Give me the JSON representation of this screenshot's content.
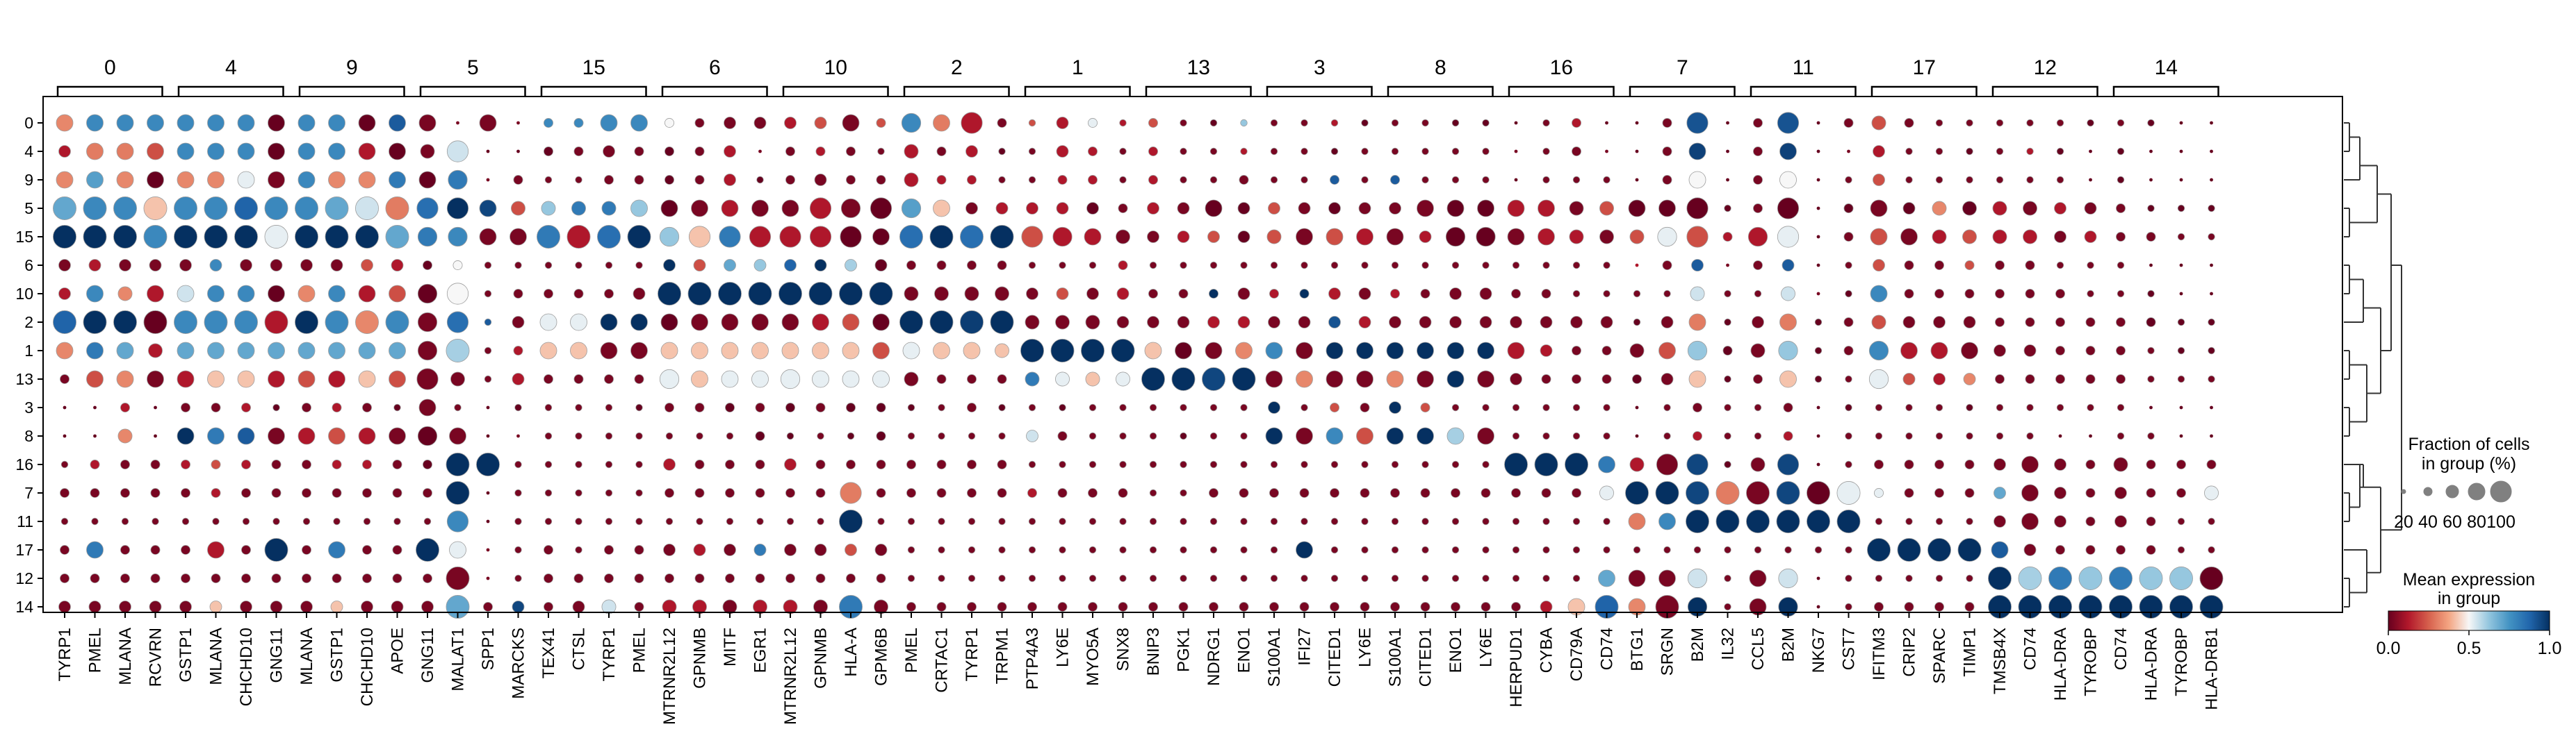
{
  "chart_data": {
    "type": "dotplot",
    "title": "",
    "xlabel": "",
    "ylabel": "",
    "cluster_groups": [
      {
        "label": "0",
        "genes": [
          "TYRP1",
          "PMEL",
          "MLANA",
          "RCVRN"
        ]
      },
      {
        "label": "4",
        "genes": [
          "GSTP1",
          "MLANA",
          "CHCHD10",
          "GNG11"
        ]
      },
      {
        "label": "9",
        "genes": [
          "MLANA",
          "GSTP1",
          "CHCHD10",
          "APOE"
        ]
      },
      {
        "label": "5",
        "genes": [
          "GNG11",
          "MALAT1",
          "SPP1",
          "MARCKS"
        ]
      },
      {
        "label": "15",
        "genes": [
          "TEX41",
          "CTSL",
          "TYRP1",
          "PMEL"
        ]
      },
      {
        "label": "6",
        "genes": [
          "MTRNR2L12",
          "GPNMB",
          "MITF",
          "EGR1"
        ]
      },
      {
        "label": "10",
        "genes": [
          "MTRNR2L12",
          "GPNMB",
          "HLA-A",
          "GPM6B"
        ]
      },
      {
        "label": "2",
        "genes": [
          "PMEL",
          "CRTAC1",
          "TYRP1",
          "TRPM1"
        ]
      },
      {
        "label": "1",
        "genes": [
          "PTP4A3",
          "LY6E",
          "MYO5A",
          "SNX8"
        ]
      },
      {
        "label": "13",
        "genes": [
          "BNIP3",
          "PGK1",
          "NDRG1",
          "ENO1"
        ]
      },
      {
        "label": "3",
        "genes": [
          "S100A1",
          "IFI27",
          "CITED1",
          "LY6E"
        ]
      },
      {
        "label": "8",
        "genes": [
          "S100A1",
          "CITED1",
          "ENO1",
          "LY6E"
        ]
      },
      {
        "label": "16",
        "genes": [
          "HERPUD1",
          "CYBA",
          "CD79A",
          "CD74"
        ]
      },
      {
        "label": "7",
        "genes": [
          "BTG1",
          "SRGN",
          "B2M",
          "IL32"
        ]
      },
      {
        "label": "11",
        "genes": [
          "CCL5",
          "B2M",
          "NKG7",
          "CST7"
        ]
      },
      {
        "label": "17",
        "genes": [
          "IFITM3",
          "CRIP2",
          "SPARC",
          "TIMP1"
        ]
      },
      {
        "label": "12",
        "genes": [
          "TMSB4X",
          "CD74",
          "HLA-DRA",
          "TYROBP"
        ]
      },
      {
        "label": "14",
        "genes": [
          "CD74",
          "HLA-DRA",
          "TYROBP",
          "HLA-DRB1"
        ]
      }
    ],
    "rows": [
      "0",
      "4",
      "9",
      "5",
      "15",
      "6",
      "10",
      "2",
      "1",
      "13",
      "3",
      "8",
      "16",
      "7",
      "11",
      "17",
      "12",
      "14"
    ],
    "expression": [
      "eppp.pppa.ppak.bbbb.pppp.ybbb.cdbd.pqcb.dcgc.dbah.bbca.bbaa.abca.abwa.bwab.dbbb.bbba.baaa",
      "cqqd.pppa.ppca.boaa.abbb.abcb.bcbb.cbca.bccb.cbbc.bbab.bbbb.bbbb.abxa.bxab.cbba.bcaa.aaaa",
      "eiea.eegb.peej.ajbb.bbbb.abca.bbbb.cccb.bccb.cbbb.bbkb.kbbb.abbb.abya.byab.dbbb.bbba.aaaa",
      "nppf.ppsp.pnoq.vtrd.hjjh.abcb.bcba.ifbc.ccab.cbaa.dbab.bbaa.ccbd.aaaa.baaa.baea.cbcb.baaa",
      "tttp.tttg.tttn.jpbb.jcvt.hfjc.ccaa.vtvt.dccb.bcda.dbdc.bcaa.bccb.dgdc.cgab.dbcd.ccbc.bbbb",
      "bcbb.bpbb.bbdc.aybb.bbbb.tdnh.stma.bbbb.bbbc.bbbb.bbbb.bbbb.bbbb.cbkb.bkab.dbbd.bbbb.baaa",
      "cpec.oppa.epcd.aybb.bbbb.tttt.tttt.bbbb.bdbc.bbtb.ctcb.cbbb.bbbb.bbob.boba.pbbb.bbbb.baaa",
      "stta.pppc.tpep.bvkb.ggtt.abbb.bcda.ttut.bbbb.bbcc.bbwc.bbbb.bbbb.abqa.bqab.dbbb.bbbb.baaa",
      "ejnc.nnnn.nnnn.bmbc.ffbb.ffff.fffd.gfff.tttt.fabe.pbtt.tttt.ccbb.bdha.bhab.pccb.bbbb.bbaa",
      "bdeb.cffc.dcfd.bbbc.bbbb.gfgg.gggg.bbbb.jgfg.ttrt.bebb.ebtb.bbbb.abfa.bfab.gdce.bbbb.bbbb",
      "aaca.bbca.bcba.bbaa.bbba.bbab.abaa.abba.babb.bbbb.tbdb.tdbb.bbbb.abbb.bbaa.bbba.bbbb.baaa",
      "aaea.tjkb.cdcb.abab.bbbb.bbba.abaa.bbbb.obbb.babb.tbpd.ttmb.bbbb.abcb.bcab.bbbb.bbaa.bbaa",
      "bcbb.cdcb.bccb.attb.bbbb.cbbb.cbbb.bbbb.bbbb.bbbb.bbbb.bbbb.tttj.cbra.brab.bbbb.bbbb.bbbb",
      "bbbb.bcbb.bbbb.btab.bbbb.bbbb.bbqb.bbbb.cbbb.bbbb.bbbb.bbbb.bbbg.ttrq.brag.gbbb.nbbb.bbbg",
      "bbbb.bbbb.bbbb.bpab.bbbb.bbbb.bbtb.bbbb.bbbb.bbbb.bbbb.bbbb.bbbb.qptt.tttt.bbbb.bbbb.bbbb",
      "bjbb.bcbt.bjbb.tgbb.bbbb.bcbj.bbdb.bbbb.bbbb.bbbb.btbb.bbbb.bbbb.bbbb.bbbb.tttt.kbbb.bbbb",
      "bbbb.bbbb.bbbb.bbbb.bbbb.bbbb.bbbb.bbbb.bbbb.bbbb.bbbb.bbbb.bbbn.bbob.boab.bbbb.tmjh.jhha",
      "bbbb.bfbb.bfbb.bnbr.bbob.ccbc.cbjb.bbbb.bbbb.bbbb.bbbb.bbbb.bcfs.ebtb.btab.bbbb.tttt.tttt"
    ],
    "fraction": [
      "ffff.ffff.ffff.fkfa.ccff.ccdd.ddfc.gfhc.bdcb.cbbb.bbbb.bbbb.abca.acha.chac.ecbb.bbbb.bbaa",
      "dfff.ffff.ffff.ehaa.ccdc.ccda.cccb.ecdb.bdcb.cbbb.bbbb.bbbb.abca.acfa.cfaa.dbbb.bbba.baaa",
      "ffff.ffff.ffff.fgac.bbcc.ccdb.cdcc.eccb.bccb.cbbc.bbcb.cbbb.abbb.acfa.cfab.dbbb.bbba.baaa",
      "iiii.iiii.iiii.hhfe.eeef.ffff.fhgh.gfdd.dddc.ddfd.dddd.dfff.ffee.ffhb.chac.fdee.eedd.cbbb",
      "iiii.iiii.iiii.ggff.iiii.ghhh.hhhf.iiii.hgfe.dddd.efff.fdgg.ffee.eghc.ghac.ffee.eedd.ccbb",
      "dddd.dddd.dddd.ccbb.bbbb.dddd.dddd.cccc.bbbc.bbbb.bbbb.bbbb.bbbb.acda.cdab.dccc.ccbb.baaa",
      "dfef.ffff.ffff.ghbc.cccd.iiii.iiii.eeee.dddd.cccd.ccdd.ccdd.ccbb.bbeb.beab.fccc.cccb.bbaa",
      "iiii.iiii.iiii.ghbd.ffff.ffff.ffff.iiii.eeed.dddd.dddd.dddd.dddd.bdfb.dfbc.eddd.cccc.ccbb",
      "fffe.ffff.ffff.gibc.ffff.ffff.ffff.fffe.iiii.ffff.ffff.ffff.fdcc.efgc.egbc.gfff.ddcc.cbbb",
      "cfff.ffff.ffff.hebd.cccc.gfff.gfff.eccc.eeee.iiii.ffff.ffff.dccc.cdfb.cfbb.gddd.cccc.cbbb",
      "aaca.cccb.cccb.fbab.bbbb.cccc.cccc.bbcb.bbbb.bbbb.dbcc.dcbb.bbbb.abcb.bcab.bbbb.bbbb.baaa",
      "aaea.ffff.ffff.gfaa.bbbb.bbbc.bbbc.bbbb.dcbb.bbbb.ffff.ffff.bbbb.abcb.bcab.bbbb.bbaa.bbaa",
      "bccc.cccc.cccc.ciib.bbbb.dccc.dccc.cccc.bbbb.bbbb.bbbb.bbbb.iiif.ehhb.ehab.cccc.dfdc.eccc",
      "cccc.cccc.cccc.ciab.bbbb.cccc.cchc.cccc.cccc.bbcc.cccc.cccc.ccce.iiii.iiii.cccc.dfdc.dcce",
      "bbbb.bbbb.bbbb.bhab.bbbb.bbbb.bbib.bbbb.bbbb.bbbb.bbbb.bbbb.bbbb.ffii.iiii.bbbb.dfdc.dcbb",
      "cfcc.cfci.cfcc.ifab.cbcc.dddd.dddd.bbbb.bbbb.bbbb.bfbb.bbbb.bbbb.bbbb.bbbb.iiii.fdcc.ccbb",
      "cccc.cccc.cccc.ciab.cccc.cccc.cccc.bbbb.bbbb.bbbb.bbbb.bbbb.bbbf.ffgb.fgab.bbbb.iiii.iiii",
      "dddd.dddd.dddd.dicd.cdec.eeee.eeie.cccc.cccc.cccc.cccc.cccc.cdfi.figb.fgab.cccc.iiii.iiii"
    ],
    "encoding": {
      "expression_code_to_value": {
        "a": 0.0,
        "b": 0.03,
        "c": 0.12,
        "d": 0.22,
        "e": 0.32,
        "f": 0.42,
        "g": 0.52,
        "h": 0.62,
        "i": 0.72,
        "j": 0.82,
        "k": 0.9,
        "m": 0.6,
        "n": 0.7,
        "o": 0.55,
        "p": 0.78,
        "q": 0.3,
        "r": 0.95,
        "s": 0.88,
        "t": 1.0,
        "u": 0.97,
        "v": 0.85,
        "w": 0.92,
        "x": 0.96,
        "y": 0.5
      },
      "fraction_code_to_percent": {
        "a": 2,
        "b": 8,
        "c": 15,
        "d": 25,
        "e": 35,
        "f": 50,
        "g": 65,
        "h": 80,
        "i": 95
      }
    },
    "size_legend": {
      "title": "Fraction of cells\nin group (%)",
      "values": [
        20,
        40,
        60,
        80,
        100
      ]
    },
    "color_legend": {
      "title": "Mean expression\nin group",
      "range": [
        0.0,
        1.0
      ],
      "ticks": [
        "0.0",
        "0.5",
        "1.0"
      ],
      "colormap": "RdBu"
    },
    "dendrogram": true,
    "colors": {
      "low": "#67001f",
      "mid": "#f7f7f7",
      "high": "#053061",
      "marker_edge": "#9e9e9e"
    }
  }
}
